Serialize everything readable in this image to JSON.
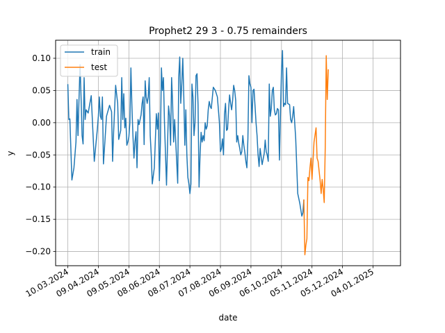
{
  "chart_data": {
    "type": "line",
    "title": "Prophet2 29 3 - 0.75 remainders",
    "xlabel": "date",
    "ylabel": "y",
    "x_tick_labels": [
      "10.03.2024",
      "09.04.2024",
      "09.05.2024",
      "08.06.2024",
      "08.07.2024",
      "07.08.2024",
      "06.09.2024",
      "06.10.2024",
      "05.11.2024",
      "05.12.2024",
      "04.01.2025"
    ],
    "y_tick_labels": [
      "0.10",
      "0.05",
      "0.00",
      "−0.05",
      "−0.10",
      "−0.15",
      "−0.20"
    ],
    "y_ticks": [
      0.1,
      0.05,
      0.0,
      -0.05,
      -0.1,
      -0.15,
      -0.2
    ],
    "x_ticks_dates": [
      "2024-03-10",
      "2024-04-09",
      "2024-05-09",
      "2024-06-08",
      "2024-07-08",
      "2024-08-07",
      "2024-09-06",
      "2024-10-06",
      "2024-11-05",
      "2024-12-05",
      "2025-01-04"
    ],
    "xlim": [
      "2024-02-27",
      "2025-01-31"
    ],
    "ylim": [
      -0.222,
      0.128
    ],
    "grid": true,
    "legend_position": "upper left",
    "series": [
      {
        "name": "train",
        "color": "#1f77b4",
        "points": [
          [
            "2024-03-10",
            0.059
          ],
          [
            "2024-03-11",
            0.005
          ],
          [
            "2024-03-12",
            0.006
          ],
          [
            "2024-03-14",
            -0.089
          ],
          [
            "2024-03-16",
            -0.07
          ],
          [
            "2024-03-18",
            -0.03
          ],
          [
            "2024-03-19",
            0.036
          ],
          [
            "2024-03-20",
            -0.02
          ],
          [
            "2024-03-21",
            0.037
          ],
          [
            "2024-03-22",
            0.09
          ],
          [
            "2024-03-23",
            0.04
          ],
          [
            "2024-03-24",
            -0.02
          ],
          [
            "2024-03-25",
            -0.033
          ],
          [
            "2024-03-26",
            0.07
          ],
          [
            "2024-03-27",
            0.005
          ],
          [
            "2024-03-28",
            0.02
          ],
          [
            "2024-03-30",
            0.015
          ],
          [
            "2024-04-02",
            0.042
          ],
          [
            "2024-04-05",
            -0.06
          ],
          [
            "2024-04-08",
            -0.01
          ],
          [
            "2024-04-09",
            0.01
          ],
          [
            "2024-04-10",
            0.04
          ],
          [
            "2024-04-11",
            0.01
          ],
          [
            "2024-04-12",
            0.005
          ],
          [
            "2024-04-13",
            0.04
          ],
          [
            "2024-04-14",
            -0.064
          ],
          [
            "2024-04-15",
            -0.04
          ],
          [
            "2024-04-17",
            0.01
          ],
          [
            "2024-04-20",
            0.027
          ],
          [
            "2024-04-22",
            0.017
          ],
          [
            "2024-04-23",
            -0.06
          ],
          [
            "2024-04-24",
            -0.015
          ],
          [
            "2024-04-26",
            0.058
          ],
          [
            "2024-04-28",
            0.03
          ],
          [
            "2024-04-29",
            -0.026
          ],
          [
            "2024-05-01",
            -0.012
          ],
          [
            "2024-05-02",
            0.07
          ],
          [
            "2024-05-03",
            0.005
          ],
          [
            "2024-05-04",
            0.045
          ],
          [
            "2024-05-05",
            -0.008
          ],
          [
            "2024-05-06",
            0.007
          ],
          [
            "2024-05-07",
            -0.035
          ],
          [
            "2024-05-08",
            -0.03
          ],
          [
            "2024-05-09",
            -0.022
          ],
          [
            "2024-05-10",
            0.0
          ],
          [
            "2024-05-11",
            0.085
          ],
          [
            "2024-05-12",
            0.025
          ],
          [
            "2024-05-13",
            -0.02
          ],
          [
            "2024-05-14",
            -0.055
          ],
          [
            "2024-05-15",
            -0.03
          ],
          [
            "2024-05-16",
            -0.014
          ],
          [
            "2024-05-17",
            -0.07
          ],
          [
            "2024-05-18",
            0.005
          ],
          [
            "2024-05-19",
            -0.003
          ],
          [
            "2024-05-21",
            0.012
          ],
          [
            "2024-05-22",
            0.03
          ],
          [
            "2024-05-23",
            0.04
          ],
          [
            "2024-05-24",
            -0.034
          ],
          [
            "2024-05-25",
            0.065
          ],
          [
            "2024-05-26",
            0.04
          ],
          [
            "2024-05-27",
            0.03
          ],
          [
            "2024-05-28",
            0.04
          ],
          [
            "2024-05-29",
            0.07
          ],
          [
            "2024-05-30",
            -0.02
          ],
          [
            "2024-05-31",
            -0.05
          ],
          [
            "2024-06-01",
            -0.095
          ],
          [
            "2024-06-03",
            -0.07
          ],
          [
            "2024-06-05",
            0.014
          ],
          [
            "2024-06-06",
            -0.01
          ],
          [
            "2024-06-07",
            0.015
          ],
          [
            "2024-06-08",
            -0.09
          ],
          [
            "2024-06-09",
            -0.03
          ],
          [
            "2024-06-10",
            0.085
          ],
          [
            "2024-06-11",
            0.05
          ],
          [
            "2024-06-12",
            0.07
          ],
          [
            "2024-06-13",
            0.0
          ],
          [
            "2024-06-15",
            -0.097
          ],
          [
            "2024-06-17",
            0.026
          ],
          [
            "2024-06-18",
            0.01
          ],
          [
            "2024-06-19",
            -0.035
          ],
          [
            "2024-06-20",
            0.07
          ],
          [
            "2024-06-21",
            0.03
          ],
          [
            "2024-06-22",
            -0.03
          ],
          [
            "2024-06-23",
            0.005
          ],
          [
            "2024-06-25",
            -0.06
          ],
          [
            "2024-06-26",
            -0.094
          ],
          [
            "2024-06-27",
            0.07
          ],
          [
            "2024-06-28",
            0.102
          ],
          [
            "2024-06-29",
            0.03
          ],
          [
            "2024-06-30",
            0.06
          ],
          [
            "2024-07-01",
            0.1
          ],
          [
            "2024-07-02",
            0.04
          ],
          [
            "2024-07-03",
            -0.035
          ],
          [
            "2024-07-04",
            0.02
          ],
          [
            "2024-07-05",
            -0.05
          ],
          [
            "2024-07-06",
            -0.085
          ],
          [
            "2024-07-07",
            -0.095
          ],
          [
            "2024-07-08",
            -0.11
          ],
          [
            "2024-07-09",
            -0.095
          ],
          [
            "2024-07-10",
            0.06
          ],
          [
            "2024-07-11",
            0.04
          ],
          [
            "2024-07-12",
            -0.02
          ],
          [
            "2024-07-13",
            0.0
          ],
          [
            "2024-07-14",
            0.073
          ],
          [
            "2024-07-15",
            0.076
          ],
          [
            "2024-07-16",
            0.028
          ],
          [
            "2024-07-17",
            -0.1
          ],
          [
            "2024-07-18",
            -0.05
          ],
          [
            "2024-07-19",
            -0.015
          ],
          [
            "2024-07-20",
            -0.03
          ],
          [
            "2024-07-21",
            -0.02
          ],
          [
            "2024-07-22",
            -0.028
          ],
          [
            "2024-07-23",
            0.0
          ],
          [
            "2024-07-24",
            -0.01
          ],
          [
            "2024-07-25",
            -0.005
          ],
          [
            "2024-07-26",
            0.02
          ],
          [
            "2024-07-27",
            0.033
          ],
          [
            "2024-07-28",
            0.025
          ],
          [
            "2024-07-29",
            0.022
          ],
          [
            "2024-07-31",
            0.055
          ],
          [
            "2024-08-02",
            0.05
          ],
          [
            "2024-08-04",
            0.04
          ],
          [
            "2024-08-06",
            0.0
          ],
          [
            "2024-08-07",
            -0.045
          ],
          [
            "2024-08-08",
            -0.04
          ],
          [
            "2024-08-09",
            -0.025
          ],
          [
            "2024-08-10",
            -0.05
          ],
          [
            "2024-08-11",
            0.013
          ],
          [
            "2024-08-12",
            0.03
          ],
          [
            "2024-08-13",
            -0.012
          ],
          [
            "2024-08-14",
            -0.01
          ],
          [
            "2024-08-15",
            0.02
          ],
          [
            "2024-08-16",
            0.043
          ],
          [
            "2024-08-17",
            0.03
          ],
          [
            "2024-08-18",
            0.02
          ],
          [
            "2024-08-19",
            0.035
          ],
          [
            "2024-08-20",
            0.058
          ],
          [
            "2024-08-21",
            0.05
          ],
          [
            "2024-08-22",
            0.035
          ],
          [
            "2024-08-23",
            -0.03
          ],
          [
            "2024-08-24",
            -0.02
          ],
          [
            "2024-08-25",
            -0.032
          ],
          [
            "2024-08-26",
            -0.04
          ],
          [
            "2024-08-27",
            -0.05
          ],
          [
            "2024-08-28",
            -0.045
          ],
          [
            "2024-08-29",
            -0.02
          ],
          [
            "2024-08-30",
            -0.035
          ],
          [
            "2024-08-31",
            -0.046
          ],
          [
            "2024-09-01",
            -0.06
          ],
          [
            "2024-09-02",
            -0.07
          ],
          [
            "2024-09-03",
            -0.025
          ],
          [
            "2024-09-04",
            0.073
          ],
          [
            "2024-09-05",
            0.06
          ],
          [
            "2024-09-06",
            0.055
          ],
          [
            "2024-09-07",
            0.0
          ],
          [
            "2024-09-08",
            0.05
          ],
          [
            "2024-09-09",
            0.052
          ],
          [
            "2024-09-11",
            0.0
          ],
          [
            "2024-09-12",
            -0.02
          ],
          [
            "2024-09-13",
            -0.05
          ],
          [
            "2024-09-14",
            -0.068
          ],
          [
            "2024-09-15",
            -0.04
          ],
          [
            "2024-09-17",
            -0.065
          ],
          [
            "2024-09-19",
            -0.048
          ],
          [
            "2024-09-20",
            -0.027
          ],
          [
            "2024-09-21",
            -0.045
          ],
          [
            "2024-09-22",
            -0.05
          ],
          [
            "2024-09-23",
            -0.06
          ],
          [
            "2024-09-24",
            0.06
          ],
          [
            "2024-09-25",
            0.01
          ],
          [
            "2024-09-26",
            0.022
          ],
          [
            "2024-09-27",
            0.05
          ],
          [
            "2024-09-28",
            0.055
          ],
          [
            "2024-09-29",
            0.02
          ],
          [
            "2024-09-30",
            0.012
          ],
          [
            "2024-10-01",
            0.014
          ],
          [
            "2024-10-02",
            0.022
          ],
          [
            "2024-10-03",
            0.02
          ],
          [
            "2024-10-04",
            -0.058
          ],
          [
            "2024-10-05",
            0.013
          ],
          [
            "2024-10-06",
            0.08
          ],
          [
            "2024-10-07",
            0.112
          ],
          [
            "2024-10-08",
            0.025
          ],
          [
            "2024-10-09",
            0.03
          ],
          [
            "2024-10-10",
            0.028
          ],
          [
            "2024-10-11",
            0.085
          ],
          [
            "2024-10-12",
            0.03
          ],
          [
            "2024-10-13",
            0.029
          ],
          [
            "2024-10-14",
            0.028
          ],
          [
            "2024-10-15",
            0.005
          ],
          [
            "2024-10-16",
            0.0
          ],
          [
            "2024-10-17",
            0.01
          ],
          [
            "2024-10-18",
            0.025
          ],
          [
            "2024-10-20",
            -0.025
          ],
          [
            "2024-10-22",
            -0.11
          ],
          [
            "2024-10-24",
            -0.125
          ],
          [
            "2024-10-25",
            -0.135
          ],
          [
            "2024-10-26",
            -0.145
          ],
          [
            "2024-10-27",
            -0.14
          ],
          [
            "2024-10-28",
            -0.12
          ]
        ]
      },
      {
        "name": "test",
        "color": "#ff7f0e",
        "points": [
          [
            "2024-10-28",
            -0.12
          ],
          [
            "2024-10-29",
            -0.205
          ],
          [
            "2024-10-30",
            -0.19
          ],
          [
            "2024-10-31",
            -0.18
          ],
          [
            "2024-11-01",
            -0.085
          ],
          [
            "2024-11-02",
            -0.09
          ],
          [
            "2024-11-03",
            -0.07
          ],
          [
            "2024-11-04",
            -0.055
          ],
          [
            "2024-11-05",
            -0.088
          ],
          [
            "2024-11-07",
            -0.03
          ],
          [
            "2024-11-09",
            -0.008
          ],
          [
            "2024-11-10",
            -0.055
          ],
          [
            "2024-11-11",
            -0.06
          ],
          [
            "2024-11-13",
            -0.09
          ],
          [
            "2024-11-14",
            -0.11
          ],
          [
            "2024-11-15",
            -0.088
          ],
          [
            "2024-11-16",
            -0.103
          ],
          [
            "2024-11-17",
            -0.124
          ],
          [
            "2024-11-18",
            -0.04
          ],
          [
            "2024-11-19",
            0.104
          ],
          [
            "2024-11-20",
            0.036
          ],
          [
            "2024-11-21",
            0.082
          ]
        ]
      }
    ]
  },
  "legend": {
    "train_label": "train",
    "test_label": "test"
  }
}
